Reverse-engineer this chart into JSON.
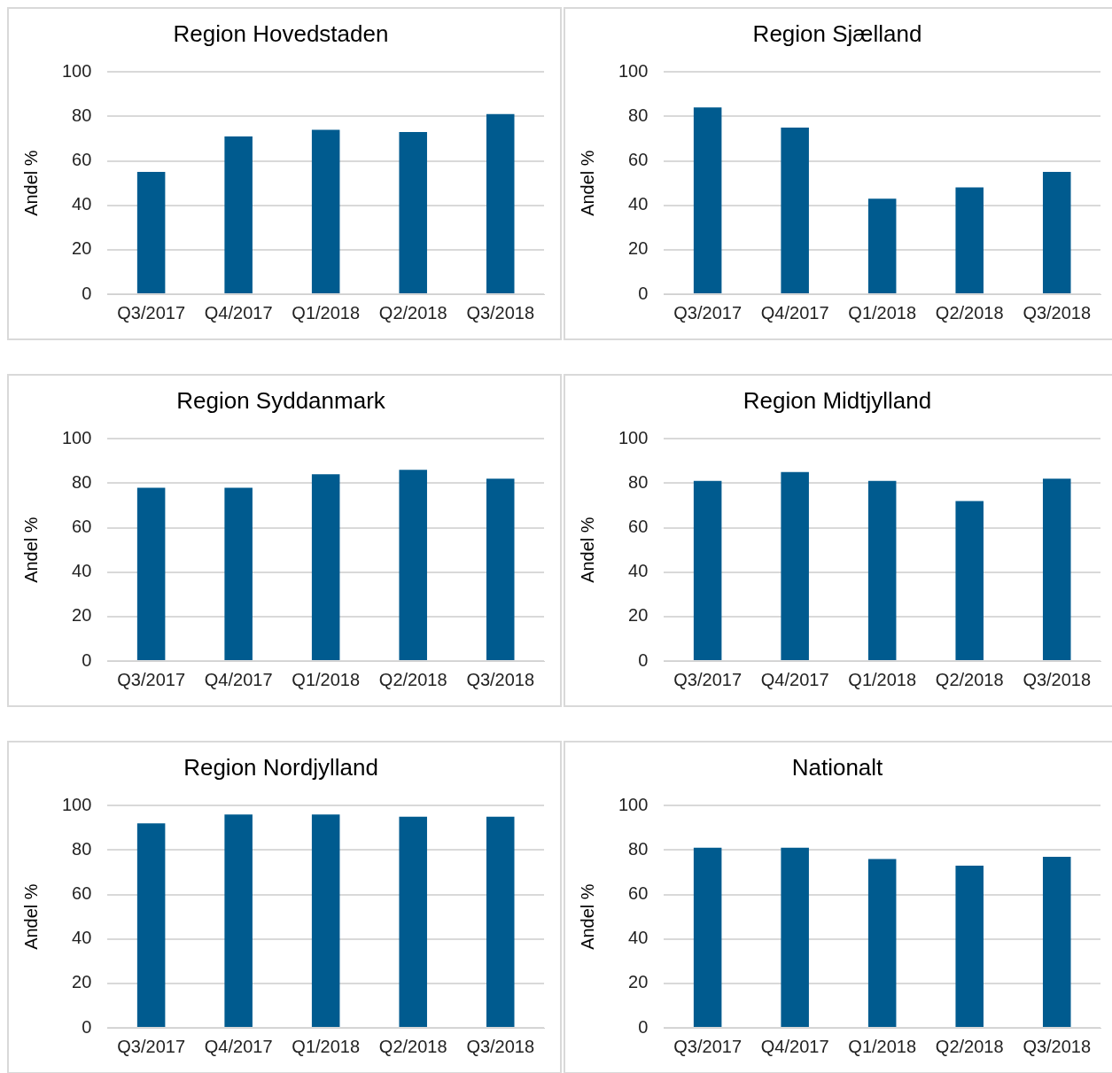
{
  "chart_data": [
    {
      "type": "bar",
      "title": "Region Hovedstaden",
      "ylabel": "Andel %",
      "categories": [
        "Q3/2017",
        "Q4/2017",
        "Q1/2018",
        "Q2/2018",
        "Q3/2018"
      ],
      "values": [
        55,
        71,
        74,
        73,
        81
      ],
      "color": "#005b8f",
      "ylim": [
        0,
        100
      ],
      "yticks": [
        0,
        20,
        40,
        60,
        80,
        100
      ],
      "grid": "y"
    },
    {
      "type": "bar",
      "title": "Region Sjælland",
      "ylabel": "Andel %",
      "categories": [
        "Q3/2017",
        "Q4/2017",
        "Q1/2018",
        "Q2/2018",
        "Q3/2018"
      ],
      "values": [
        84,
        75,
        43,
        48,
        55
      ],
      "color": "#005b8f",
      "ylim": [
        0,
        100
      ],
      "yticks": [
        0,
        20,
        40,
        60,
        80,
        100
      ],
      "grid": "y"
    },
    {
      "type": "bar",
      "title": "Region Syddanmark",
      "ylabel": "Andel %",
      "categories": [
        "Q3/2017",
        "Q4/2017",
        "Q1/2018",
        "Q2/2018",
        "Q3/2018"
      ],
      "values": [
        78,
        78,
        84,
        86,
        82
      ],
      "color": "#005b8f",
      "ylim": [
        0,
        100
      ],
      "yticks": [
        0,
        20,
        40,
        60,
        80,
        100
      ],
      "grid": "y"
    },
    {
      "type": "bar",
      "title": "Region Midtjylland",
      "ylabel": "Andel %",
      "categories": [
        "Q3/2017",
        "Q4/2017",
        "Q1/2018",
        "Q2/2018",
        "Q3/2018"
      ],
      "values": [
        81,
        85,
        81,
        72,
        82
      ],
      "color": "#005b8f",
      "ylim": [
        0,
        100
      ],
      "yticks": [
        0,
        20,
        40,
        60,
        80,
        100
      ],
      "grid": "y"
    },
    {
      "type": "bar",
      "title": "Region Nordjylland",
      "ylabel": "Andel %",
      "categories": [
        "Q3/2017",
        "Q4/2017",
        "Q1/2018",
        "Q2/2018",
        "Q3/2018"
      ],
      "values": [
        92,
        96,
        96,
        95,
        95
      ],
      "color": "#005b8f",
      "ylim": [
        0,
        100
      ],
      "yticks": [
        0,
        20,
        40,
        60,
        80,
        100
      ],
      "grid": "y"
    },
    {
      "type": "bar",
      "title": "Nationalt",
      "ylabel": "Andel %",
      "categories": [
        "Q3/2017",
        "Q4/2017",
        "Q1/2018",
        "Q2/2018",
        "Q3/2018"
      ],
      "values": [
        81,
        81,
        76,
        73,
        77
      ],
      "color": "#005b8f",
      "ylim": [
        0,
        100
      ],
      "yticks": [
        0,
        20,
        40,
        60,
        80,
        100
      ],
      "grid": "y"
    }
  ]
}
